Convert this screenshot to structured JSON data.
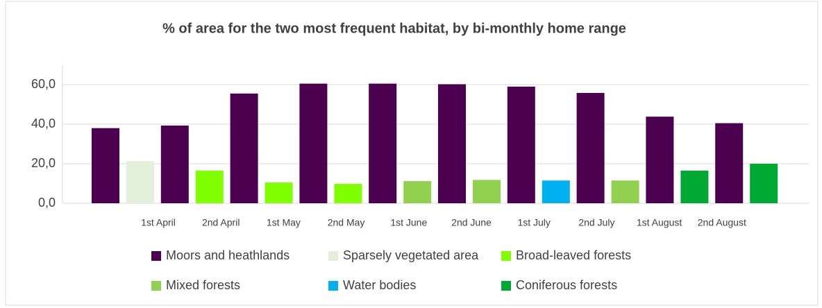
{
  "chart_data": {
    "type": "bar",
    "title": "% of area for the two most frequent habitat, by bi-monthly home range",
    "categories": [
      "1st April",
      "2nd April",
      "1st May",
      "2nd May",
      "1st June",
      "2nd June",
      "1st July",
      "2nd July",
      "1st August",
      "2nd August"
    ],
    "series": [
      {
        "name": "Moors and heathlands",
        "color": "#4b0050",
        "values": [
          38,
          39.3,
          55.5,
          60.5,
          60.5,
          60.2,
          59,
          55.8,
          43.8,
          40.5
        ]
      },
      {
        "name": "Sparsely vegetated area",
        "color": "#e2f0d9",
        "values": [
          21.3,
          null,
          null,
          null,
          null,
          null,
          null,
          null,
          null,
          null
        ]
      },
      {
        "name": "Broad-leaved forests",
        "color": "#7fff00",
        "values": [
          null,
          16.5,
          10.5,
          9.8,
          null,
          null,
          null,
          null,
          null,
          null
        ]
      },
      {
        "name": "Mixed forests",
        "color": "#92d050",
        "values": [
          null,
          null,
          null,
          null,
          11.2,
          11.8,
          null,
          11.5,
          null,
          null
        ]
      },
      {
        "name": "Water bodies",
        "color": "#00b0f0",
        "values": [
          null,
          null,
          null,
          null,
          null,
          null,
          11.5,
          null,
          null,
          null
        ]
      },
      {
        "name": "Coniferous forests",
        "color": "#00a933",
        "values": [
          null,
          null,
          null,
          null,
          null,
          null,
          null,
          null,
          16.5,
          20
        ]
      }
    ],
    "ylim": [
      0,
      70
    ],
    "yticks": [
      {
        "value": 0,
        "label": "0,0"
      },
      {
        "value": 20,
        "label": "20,0"
      },
      {
        "value": 40,
        "label": "40,0"
      },
      {
        "value": 60,
        "label": "60,0"
      }
    ],
    "grid": true,
    "legend": "bottom"
  }
}
